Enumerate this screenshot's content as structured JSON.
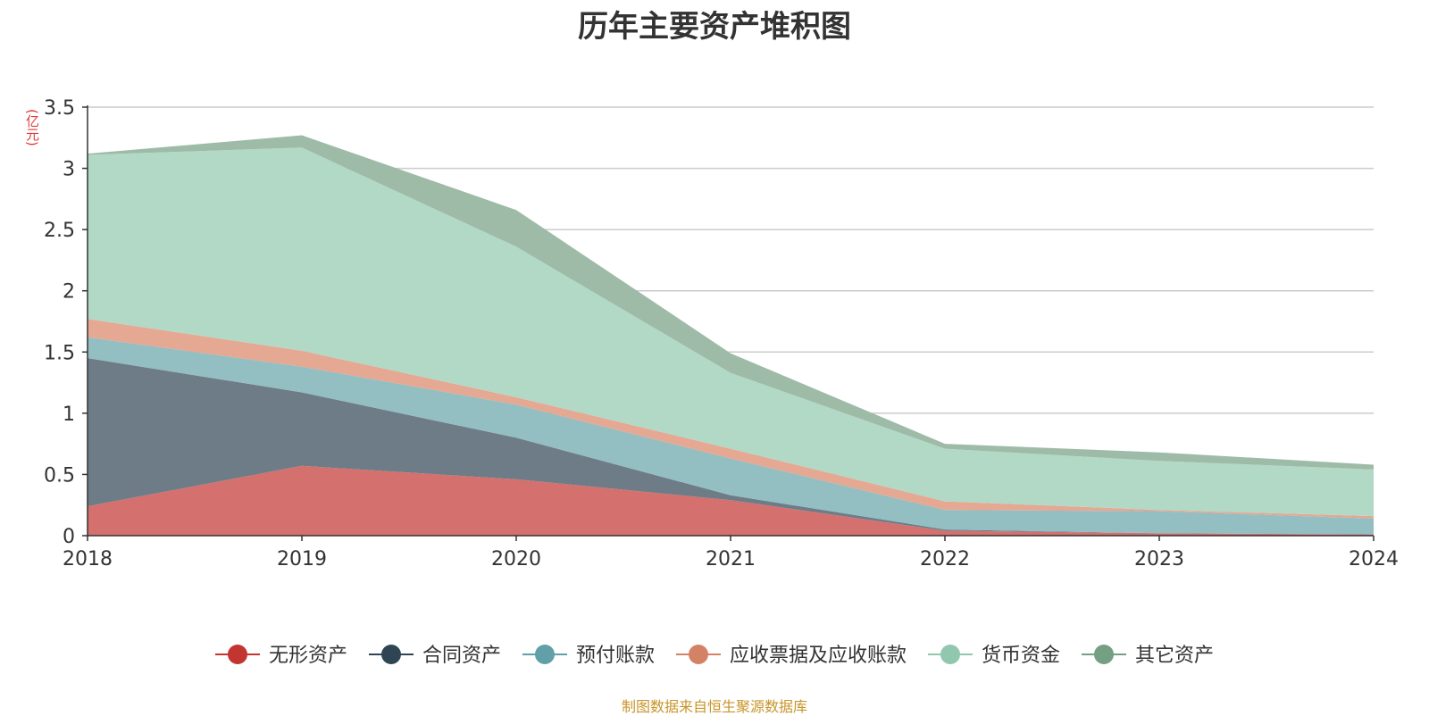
{
  "chart_data": {
    "type": "area",
    "stacked": true,
    "title": "历年主要资产堆积图",
    "unit_label": "(亿元)",
    "x": [
      "2018",
      "2019",
      "2020",
      "2021",
      "2022",
      "2023",
      "2024"
    ],
    "ylim": [
      0,
      3.5
    ],
    "yticks": [
      "0",
      "0.5",
      "1",
      "1.5",
      "2",
      "2.5",
      "3",
      "3.5"
    ],
    "grid": true,
    "legend_position": "bottom",
    "series": [
      {
        "name": "无形资产",
        "color": "#c23531",
        "fill": "#d4706d",
        "values": [
          0.24,
          0.57,
          0.46,
          0.29,
          0.04,
          0.02,
          0.01
        ]
      },
      {
        "name": "合同资产",
        "color": "#2f4554",
        "fill": "#6e7c87",
        "values": [
          1.21,
          0.6,
          0.34,
          0.04,
          0.01,
          0.0,
          0.0
        ]
      },
      {
        "name": "预付账款",
        "color": "#61a0a8",
        "fill": "#93bec2",
        "values": [
          0.17,
          0.21,
          0.27,
          0.3,
          0.16,
          0.18,
          0.13
        ]
      },
      {
        "name": "应收票据及应收账款",
        "color": "#d48265",
        "fill": "#e4a893",
        "values": [
          0.15,
          0.13,
          0.06,
          0.08,
          0.07,
          0.01,
          0.02
        ]
      },
      {
        "name": "货币资金",
        "color": "#91c7ae",
        "fill": "#b2d8c6",
        "values": [
          1.34,
          1.66,
          1.23,
          0.62,
          0.43,
          0.4,
          0.38
        ]
      },
      {
        "name": "其它资产",
        "color": "#749f83",
        "fill": "#9ebba8",
        "values": [
          0.01,
          0.1,
          0.3,
          0.16,
          0.04,
          0.07,
          0.04
        ]
      }
    ]
  },
  "source": "制图数据来自恒生聚源数据库"
}
